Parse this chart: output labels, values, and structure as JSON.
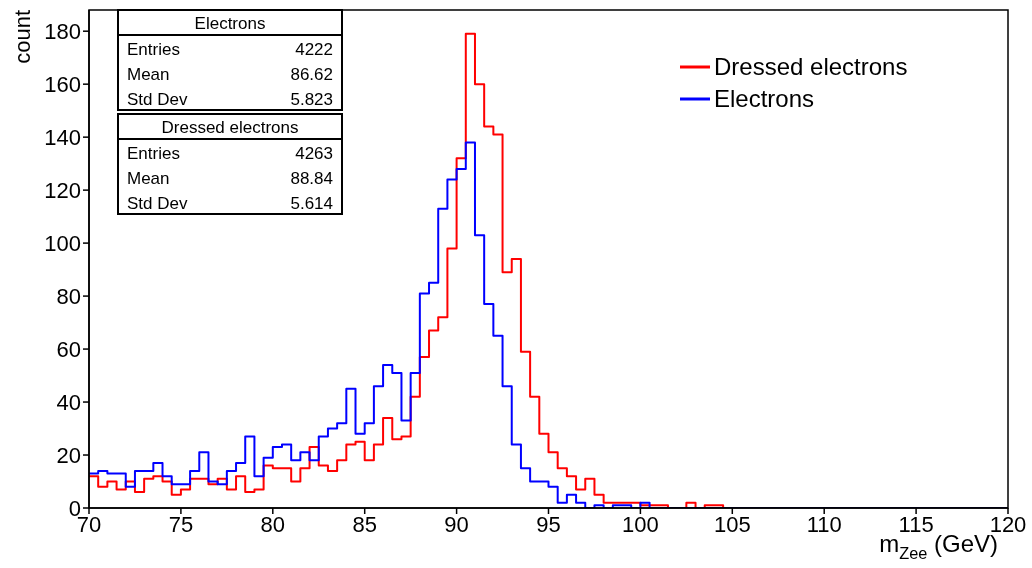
{
  "chart_data": {
    "type": "histogram",
    "xlabel": "m$_{Zee}$ (GeV)",
    "ylabel": "count",
    "bins": [
      70,
      70.5,
      71,
      71.5,
      72,
      72.5,
      73,
      73.5,
      74,
      74.5,
      75,
      75.5,
      76,
      76.5,
      77,
      77.5,
      78,
      78.5,
      79,
      79.5,
      80,
      80.5,
      81,
      81.5,
      82,
      82.5,
      83,
      83.5,
      84,
      84.5,
      85,
      85.5,
      86,
      86.5,
      87,
      87.5,
      88,
      88.5,
      89,
      89.5,
      90,
      90.5,
      91,
      91.5,
      92,
      92.5,
      93,
      93.5,
      94,
      94.5,
      95,
      95.5,
      96,
      96.5,
      97,
      97.5,
      98,
      98.5,
      99,
      99.5,
      100,
      100.5,
      101,
      101.5,
      102,
      102.5,
      103,
      103.5,
      104,
      104.5,
      105,
      105.5,
      106,
      106.5,
      107,
      107.5,
      108,
      108.5,
      109,
      109.5,
      110,
      110.5,
      111,
      111.5,
      112,
      112.5,
      113,
      113.5,
      114,
      114.5,
      115,
      115.5,
      116,
      116.5,
      117,
      117.5,
      118,
      118.5,
      119,
      119.5,
      120
    ],
    "series": [
      {
        "name": "Dressed electrons",
        "color": "#ff0000",
        "values": [
          12,
          8,
          10,
          7,
          10,
          6,
          11,
          12,
          10,
          5,
          7,
          11,
          11,
          9,
          11,
          7,
          12,
          6,
          7,
          16,
          15,
          15,
          10,
          15,
          23,
          16,
          14,
          18,
          24,
          25,
          18,
          24,
          34,
          26,
          27,
          42,
          57,
          67,
          72,
          98,
          132,
          179,
          160,
          144,
          141,
          89,
          94,
          59,
          42,
          28,
          21,
          15,
          12,
          7,
          11,
          5,
          2,
          2,
          2,
          2,
          1,
          1,
          1,
          0,
          0,
          2,
          0,
          1,
          1,
          0,
          0,
          0,
          0,
          0,
          0,
          0,
          0,
          0,
          0,
          0,
          0,
          0,
          0,
          0,
          0,
          0,
          0,
          0,
          0,
          0,
          0,
          0,
          0,
          0,
          0,
          0,
          0,
          0,
          0,
          0
        ]
      },
      {
        "name": "Electrons",
        "color": "#0000ff",
        "values": [
          13,
          14,
          13,
          13,
          8,
          14,
          14,
          17,
          12,
          9,
          9,
          14,
          21,
          10,
          9,
          14,
          17,
          27,
          12,
          19,
          23,
          24,
          18,
          21,
          18,
          27,
          30,
          32,
          45,
          28,
          32,
          46,
          54,
          51,
          33,
          51,
          81,
          85,
          113,
          124,
          128,
          138,
          103,
          77,
          65,
          46,
          24,
          15,
          10,
          10,
          8,
          2,
          5,
          2,
          0,
          1,
          0,
          1,
          1,
          0,
          2,
          0,
          0,
          0,
          0,
          0,
          0,
          0,
          0,
          0,
          0,
          0,
          0,
          0,
          0,
          0,
          0,
          0,
          0,
          0,
          0,
          0,
          0,
          0,
          0,
          0,
          0,
          0,
          0,
          0,
          0,
          0,
          0,
          0,
          0,
          0,
          0,
          0,
          0,
          0
        ]
      }
    ],
    "xlim": [
      70,
      120
    ],
    "xticks": [
      70,
      75,
      80,
      85,
      90,
      95,
      100,
      105,
      110,
      115,
      120
    ],
    "ylim": [
      0,
      188
    ],
    "yticks": [
      0,
      20,
      40,
      60,
      80,
      100,
      120,
      140,
      160,
      180
    ],
    "grid": false,
    "legend": "top right",
    "marker": "none",
    "line_style": "solid",
    "annotations": [
      "Electrons",
      "Entries",
      "4222",
      "Mean",
      "86.62",
      "Std Dev",
      "5.823",
      "Dressed electrons",
      "Entries",
      "4263",
      "Mean",
      "88.84",
      "Std Dev",
      "5.614"
    ]
  }
}
